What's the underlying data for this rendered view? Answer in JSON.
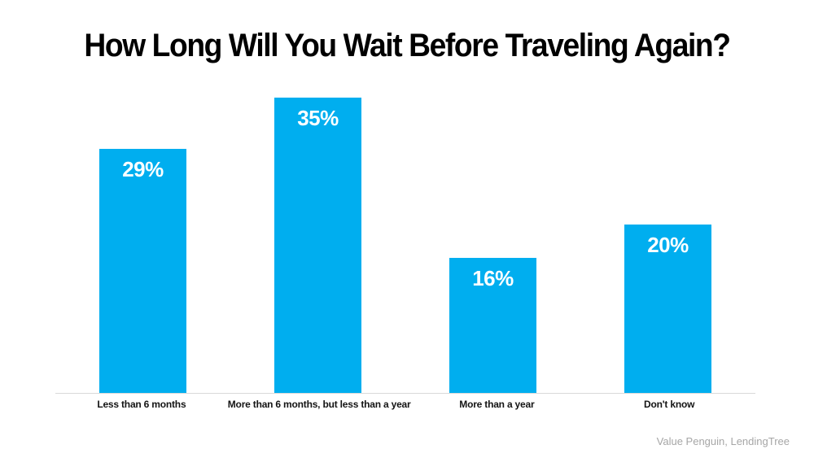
{
  "source": "Value Penguin, LendingTree",
  "colors": {
    "bar": "#00AEEF",
    "axis_line": "#D9D9D9",
    "title_text": "#000000",
    "value_label_text": "#FFFFFF",
    "category_label_text": "#141414",
    "source_text": "#A6A6A6",
    "background": "#FFFFFF"
  },
  "chart_data": {
    "type": "bar",
    "title": "How Long Will You Wait Before Traveling Again?",
    "categories": [
      "Less than 6 months",
      "More than 6 months, but less than a year",
      "More than a year",
      "Don't know"
    ],
    "values": [
      29,
      35,
      16,
      20
    ],
    "value_labels": [
      "29%",
      "35%",
      "16%",
      "20%"
    ],
    "xlabel": "",
    "ylabel": "",
    "ylim": [
      0,
      36
    ],
    "grid": false,
    "legend": false,
    "bar_color": "#00AEEF",
    "value_label_position": "inside-top",
    "orientation": "vertical"
  }
}
